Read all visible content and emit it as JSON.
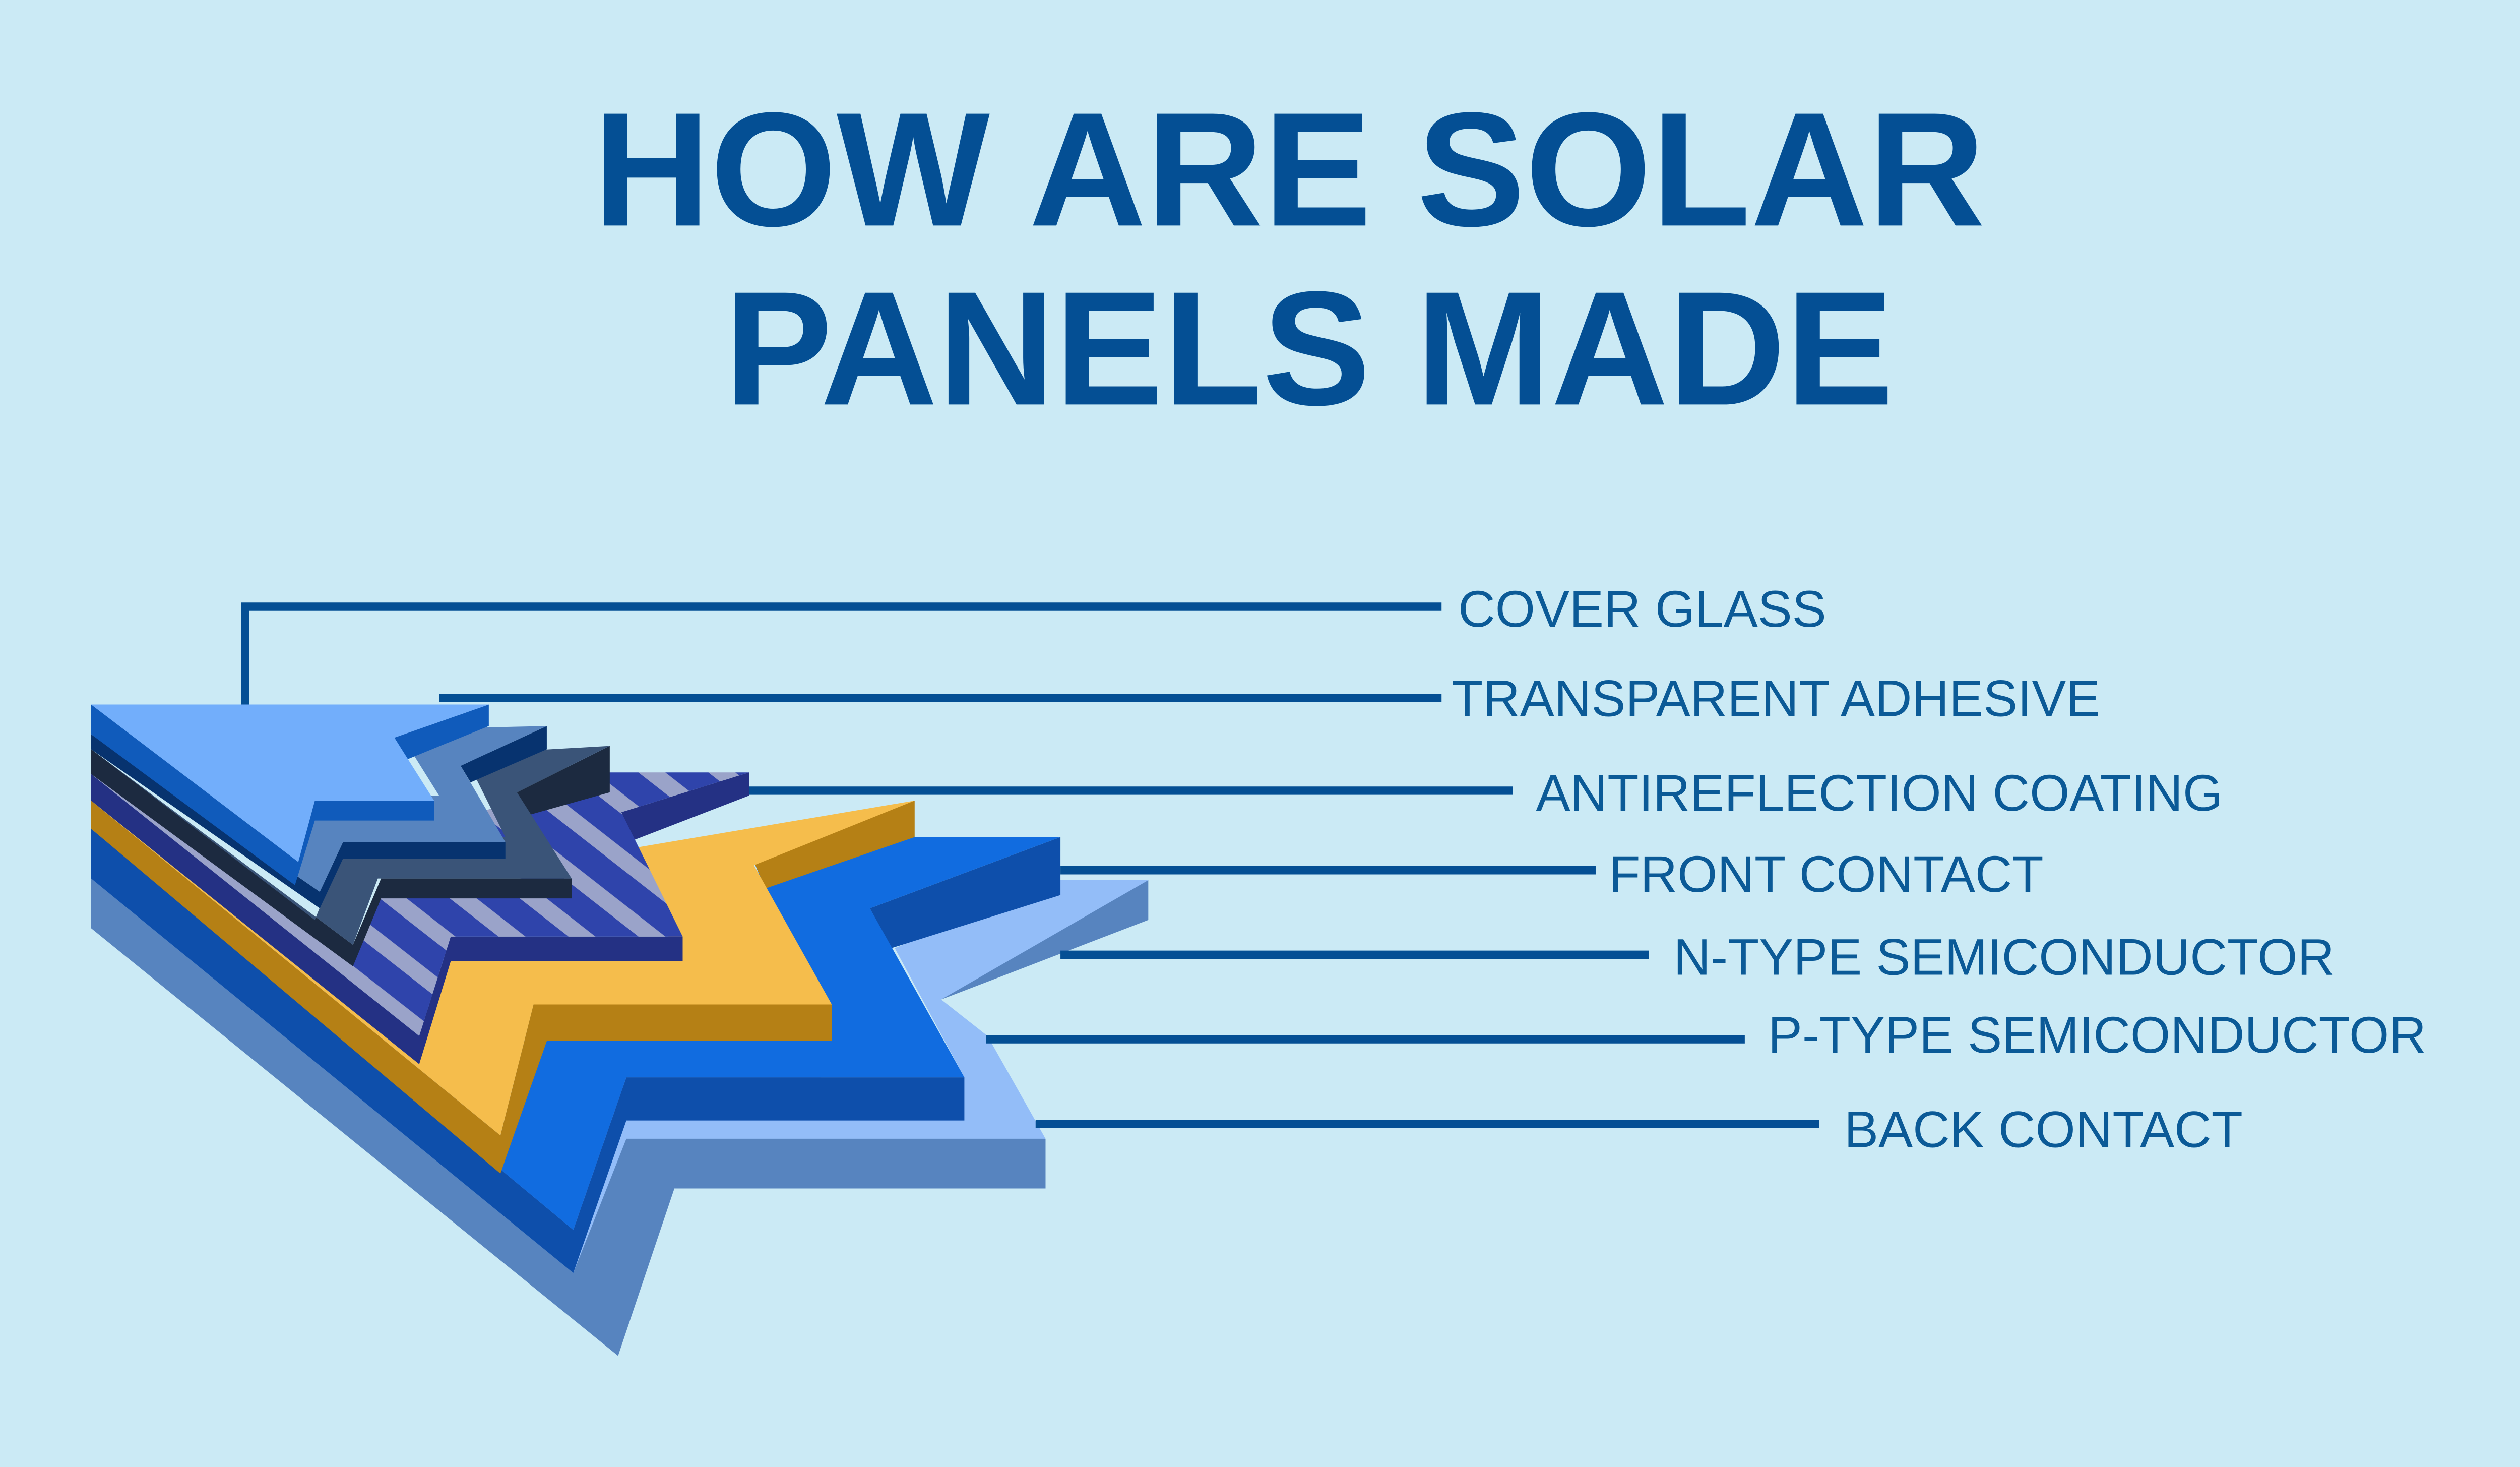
{
  "title": {
    "line1": "HOW ARE SOLAR",
    "line2": "PANELS MADE"
  },
  "layers": [
    {
      "label": "COVER GLASS",
      "color": "#72aefb"
    },
    {
      "label": "TRANSPARENT ADHESIVE",
      "color": "#5784bf"
    },
    {
      "label": "ANTIREFLECTION COATING",
      "color": "#3a5478"
    },
    {
      "label": "FRONT CONTACT",
      "color": "#2f44ab"
    },
    {
      "label": "N-TYPE SEMICONDUCTOR",
      "color": "#f5bd4c"
    },
    {
      "label": "P-TYPE SEMICONDUCTOR",
      "color": "#116ce0"
    },
    {
      "label": "BACK CONTACT",
      "color": "#93bdf8"
    }
  ],
  "colors": {
    "background": "#cbeaf5",
    "title": "#044f94",
    "leader": "#044f94"
  }
}
